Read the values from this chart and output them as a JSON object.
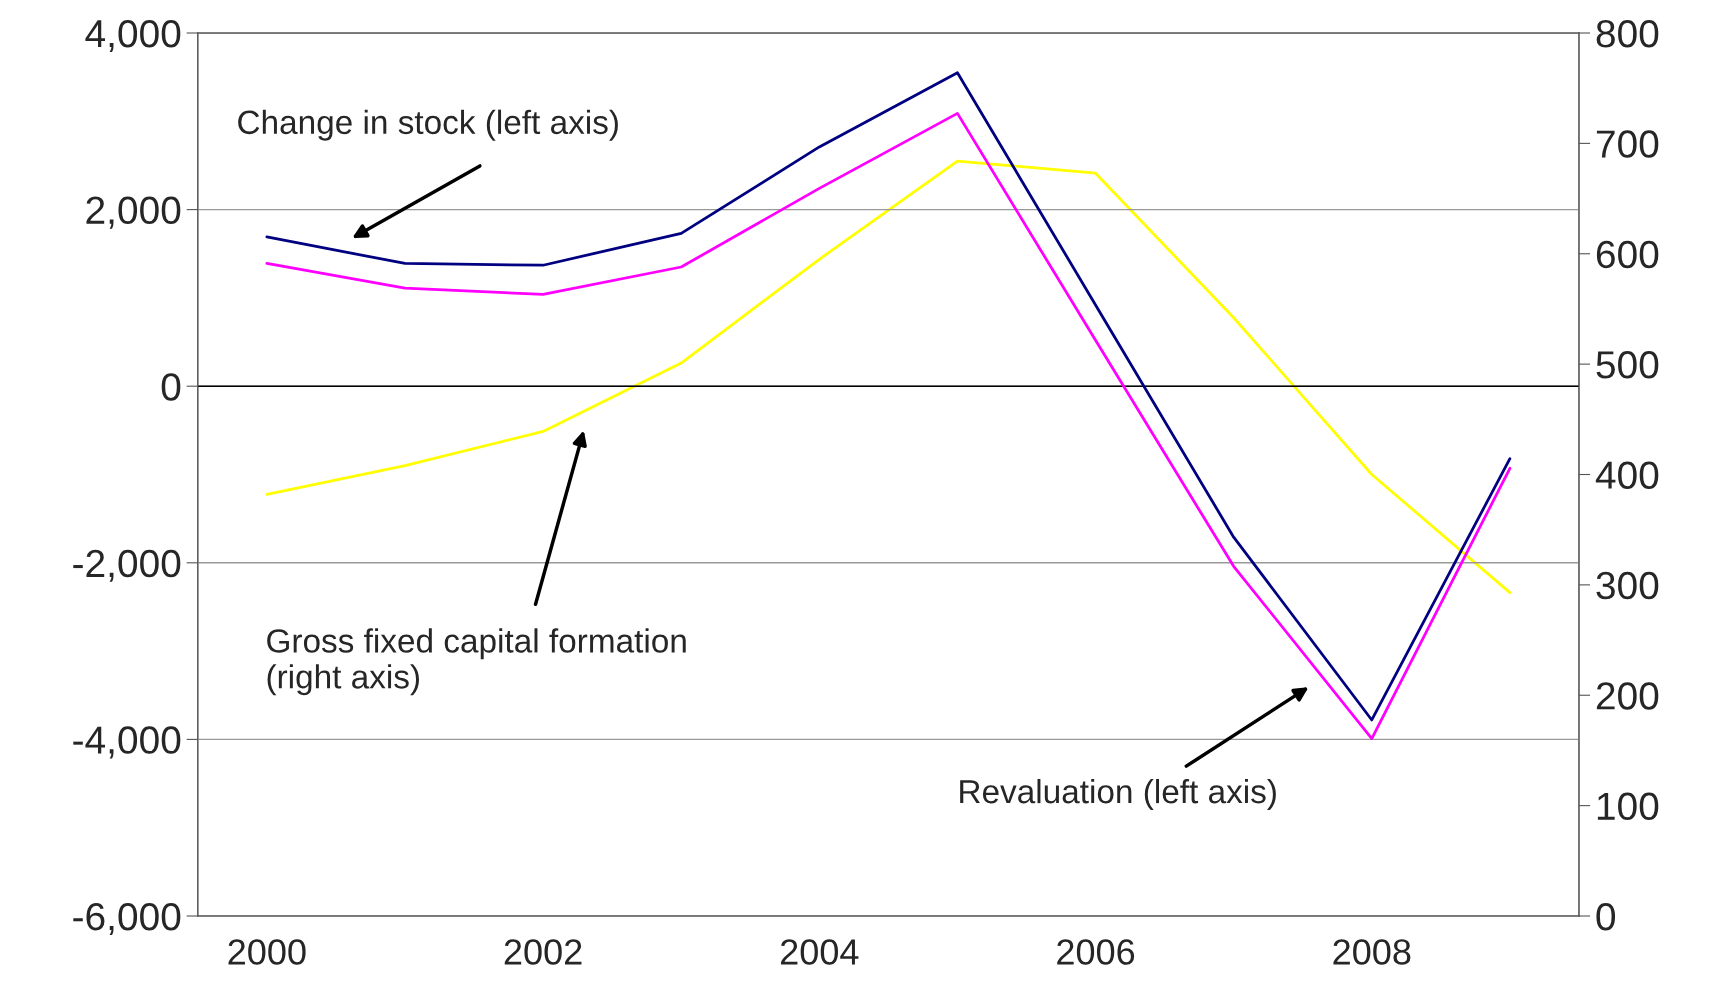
{
  "chart_data": {
    "type": "line",
    "categories": [
      "2000",
      null,
      "2002",
      null,
      "2004",
      null,
      "2006",
      null,
      "2008",
      null
    ],
    "series": [
      {
        "color": "#000080",
        "values": [
          1690,
          1390,
          1370,
          1730,
          2710,
          3550,
          920,
          -1710,
          -3780,
          -820
        ]
      },
      {
        "color": "#ff00ff",
        "values": [
          1390,
          1110,
          1040,
          1350,
          2240,
          3090,
          520,
          -2040,
          -3990,
          -930
        ]
      },
      {
        "color": "#ffff00",
        "axis": "y2",
        "values": [
          382,
          408,
          439,
          501,
          595,
          684,
          673,
          542,
          400,
          293
        ]
      }
    ],
    "ylim": [
      -6000,
      4000
    ],
    "yticks": [
      {
        "value": -6000,
        "label": "-6,000"
      },
      {
        "value": -4000,
        "label": "-4,000"
      },
      {
        "value": -2000,
        "label": "-2,000"
      },
      0,
      {
        "value": 2000,
        "label": "2,000"
      },
      {
        "value": 4000,
        "label": "4,000"
      }
    ],
    "y2lim": [
      0,
      800
    ],
    "y2ticks": [
      0,
      100,
      200,
      300,
      400,
      500,
      600,
      700,
      800
    ],
    "grid": "y",
    "legend": false,
    "annotations": [
      "Change in stock (left axis)",
      "Gross fixed capital formation\n(right axis)",
      "Revaluation (left axis)"
    ]
  }
}
